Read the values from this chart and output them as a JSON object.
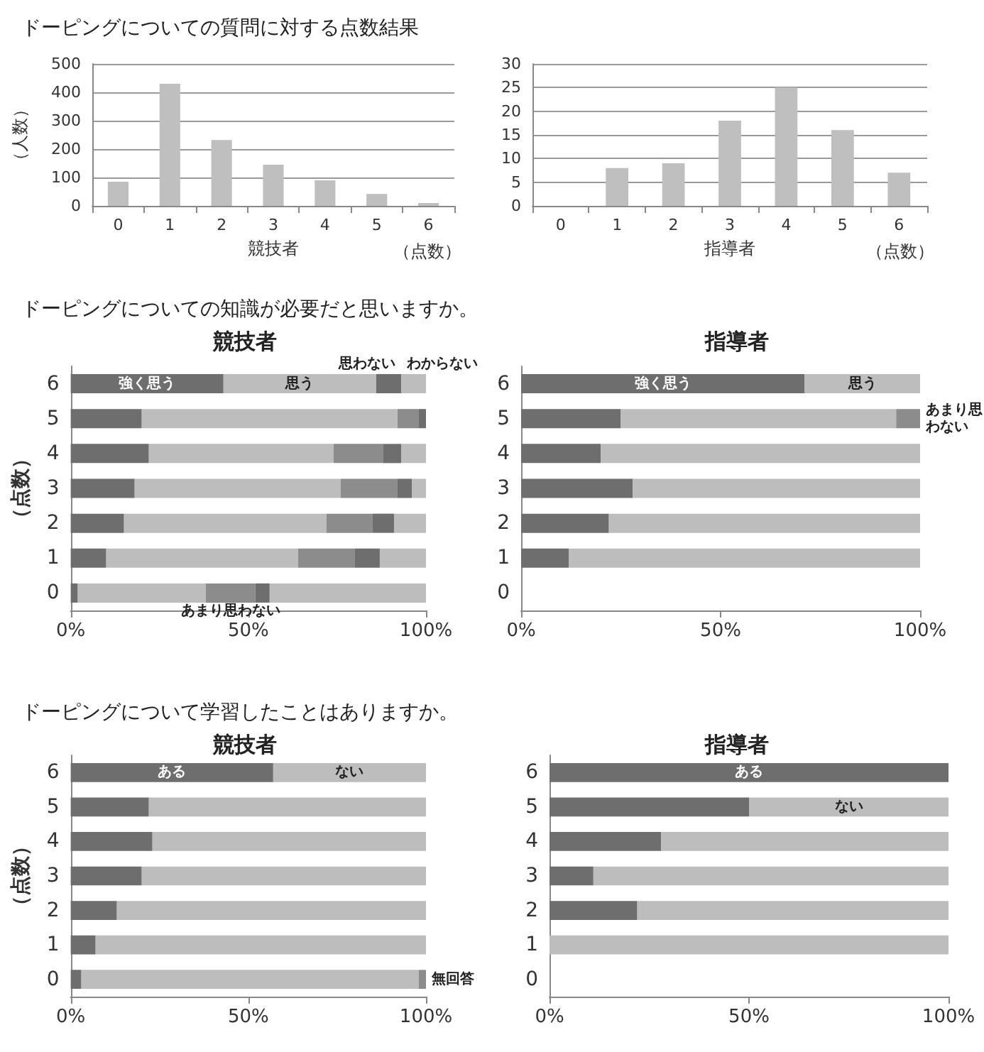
{
  "chart_data": [
    {
      "type": "bar",
      "title": "ドーピングについての質問に対する点数結果",
      "xlabel": "競技者",
      "ylabel": "（人数）",
      "annotations": [
        "（点数）"
      ],
      "categories": [
        "0",
        "1",
        "2",
        "3",
        "4",
        "5",
        "6"
      ],
      "values": [
        85,
        430,
        232,
        145,
        90,
        42,
        10
      ],
      "color": "#bfbfbf",
      "ylim": [
        0,
        500
      ],
      "yticks": [
        0,
        100,
        200,
        300,
        400,
        500
      ],
      "grid": "y"
    },
    {
      "type": "bar",
      "xlabel": "指導者",
      "annotations": [
        "（点数）"
      ],
      "categories": [
        "0",
        "1",
        "2",
        "3",
        "4",
        "5",
        "6"
      ],
      "values": [
        0,
        8,
        9,
        18,
        25,
        16,
        7
      ],
      "color": "#bfbfbf",
      "ylim": [
        0,
        30
      ],
      "yticks": [
        0,
        5,
        10,
        15,
        20,
        25,
        30
      ],
      "grid": "y"
    },
    {
      "type": "bar",
      "orientation": "horizontal",
      "stacked": true,
      "title": "ドーピングについての知識が必要だと思いますか。",
      "subtitle": "競技者",
      "ylabel": "（点数）",
      "categories": [
        "6",
        "5",
        "4",
        "3",
        "2",
        "1",
        "0"
      ],
      "xlim": [
        0,
        100
      ],
      "xticks": [
        {
          "value": 0,
          "label": "0%"
        },
        {
          "value": 50,
          "label": "50%"
        },
        {
          "value": 100,
          "label": "100%"
        }
      ],
      "series": [
        {
          "name": "強く思う",
          "color": "#6e6e6e",
          "values": [
            43,
            20,
            22,
            18,
            15,
            10,
            2
          ]
        },
        {
          "name": "思う",
          "color": "#bdbdbd",
          "values": [
            43,
            72,
            52,
            58,
            57,
            54,
            36
          ]
        },
        {
          "name": "あまり思わない",
          "color": "#8c8c8c",
          "values": [
            0,
            6,
            14,
            16,
            13,
            16,
            14
          ]
        },
        {
          "name": "思わない",
          "color": "#6e6e6e",
          "values": [
            7,
            2,
            5,
            4,
            6,
            7,
            4
          ]
        },
        {
          "name": "わからない",
          "color": "#bdbdbd",
          "values": [
            7,
            0,
            7,
            4,
            9,
            13,
            44
          ]
        }
      ]
    },
    {
      "type": "bar",
      "orientation": "horizontal",
      "stacked": true,
      "title": "指導者",
      "categories": [
        "6",
        "5",
        "4",
        "3",
        "2",
        "1",
        "0"
      ],
      "xlim": [
        0,
        100
      ],
      "xticks": [
        {
          "value": 0,
          "label": "0%"
        },
        {
          "value": 50,
          "label": "50%"
        },
        {
          "value": 100,
          "label": "100%"
        }
      ],
      "series": [
        {
          "name": "強く思う",
          "color": "#6e6e6e",
          "values": [
            71,
            25,
            20,
            28,
            22,
            12,
            null
          ]
        },
        {
          "name": "思う",
          "color": "#bdbdbd",
          "values": [
            29,
            69,
            80,
            72,
            78,
            88,
            null
          ]
        },
        {
          "name": "あまり思わない",
          "color": "#8c8c8c",
          "values": [
            0,
            6,
            0,
            0,
            0,
            0,
            null
          ]
        }
      ]
    },
    {
      "type": "bar",
      "orientation": "horizontal",
      "stacked": true,
      "title": "ドーピングについて学習したことはありますか。",
      "subtitle": "競技者",
      "ylabel": "（点数）",
      "categories": [
        "6",
        "5",
        "4",
        "3",
        "2",
        "1",
        "0"
      ],
      "xlim": [
        0,
        100
      ],
      "xticks": [
        {
          "value": 0,
          "label": "0%"
        },
        {
          "value": 50,
          "label": "50%"
        },
        {
          "value": 100,
          "label": "100%"
        }
      ],
      "series": [
        {
          "name": "ある",
          "color": "#6e6e6e",
          "values": [
            57,
            22,
            23,
            20,
            13,
            7,
            3
          ]
        },
        {
          "name": "ない",
          "color": "#bdbdbd",
          "values": [
            43,
            78,
            77,
            80,
            87,
            93,
            95
          ]
        },
        {
          "name": "無回答",
          "color": "#8c8c8c",
          "values": [
            0,
            0,
            0,
            0,
            0,
            0,
            2
          ]
        }
      ]
    },
    {
      "type": "bar",
      "orientation": "horizontal",
      "stacked": true,
      "title": "指導者",
      "categories": [
        "6",
        "5",
        "4",
        "3",
        "2",
        "1",
        "0"
      ],
      "xlim": [
        0,
        100
      ],
      "xticks": [
        {
          "value": 0,
          "label": "0%"
        },
        {
          "value": 50,
          "label": "50%"
        },
        {
          "value": 100,
          "label": "100%"
        }
      ],
      "series": [
        {
          "name": "ある",
          "color": "#6e6e6e",
          "values": [
            100,
            50,
            28,
            11,
            22,
            0,
            null
          ]
        },
        {
          "name": "ない",
          "color": "#bdbdbd",
          "values": [
            0,
            50,
            72,
            89,
            78,
            100,
            null
          ]
        }
      ]
    }
  ]
}
